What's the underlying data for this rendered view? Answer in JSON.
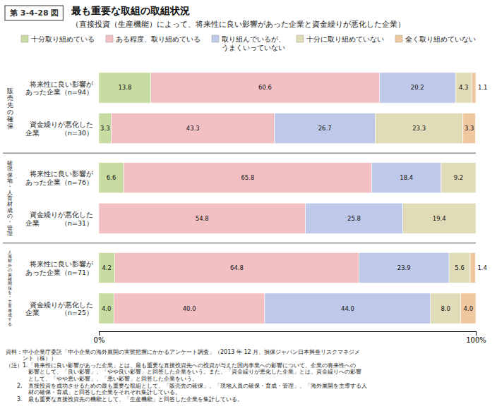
{
  "chart_data": {
    "type": "bar",
    "orientation": "horizontal",
    "stacked": true,
    "data_labels": true,
    "legend": "top",
    "grid": false,
    "title": "最も重要な取組の取組状況",
    "subtitle": "（直接投資（生産機能）によって、将来性に良い影響があった企業と資金繰りが悪化した企業）",
    "figure_label": "第 3-4-28 図",
    "categories": [
      "将来性に良い影響が\nあった企業（n=94）",
      "資金繰りが悪化した\n企業          （n=30）",
      "将来性に良い影響が\nあった企業（n=76）",
      "資金繰りが悪化した\n企業          （n=31）",
      "将来性に良い影響が\nあった企業（n=71）",
      "資金繰りが悪化した\n企業          （n=25）"
    ],
    "group_labels": [
      "販\n売\n先\nの\n確\n保",
      "確\n現\n保\n地\n・\n人\n育\n材\n成\nの\n・\n管\n理",
      "人\n海\n材\n外\nの\n展\n確\n開\n保\nを\n・\n主\n育\n導\n成\nす\nる"
    ],
    "series": [
      {
        "name": "十分取り組めている",
        "color": "#c8dba0",
        "values": [
          13.8,
          3.3,
          6.6,
          0.0,
          4.2,
          4.0
        ],
        "value_labels": [
          "13.8",
          "3.3",
          "6.6",
          null,
          "4.2",
          "4.0"
        ]
      },
      {
        "name": "ある程度、取り組めている",
        "color": "#f2c0c2",
        "values": [
          60.6,
          43.3,
          65.8,
          54.8,
          64.8,
          40.0
        ],
        "value_labels": [
          "60.6",
          "43.3",
          "65.8",
          "54.8",
          "64.8",
          "40.0"
        ]
      },
      {
        "name": "取り組んでいるが、\nうまくいっていない",
        "color": "#bec8e8",
        "values": [
          20.2,
          26.7,
          18.4,
          25.8,
          23.9,
          44.0
        ],
        "value_labels": [
          "20.2",
          "26.7",
          "18.4",
          "25.8",
          "23.9",
          "44.0"
        ]
      },
      {
        "name": "十分に取り組めていない",
        "color": "#e0dcb8",
        "values": [
          4.3,
          23.3,
          9.2,
          19.4,
          5.6,
          8.0
        ],
        "value_labels": [
          "4.3",
          "23.3",
          "9.2",
          "19.4",
          "5.6",
          "8.0"
        ]
      },
      {
        "name": "全く取り組めていない",
        "color": "#f0c8a0",
        "values": [
          1.1,
          3.3,
          0.0,
          0.0,
          1.4,
          4.0
        ],
        "value_labels": [
          "1.1",
          "3.3",
          null,
          null,
          "1.4",
          "4.0"
        ]
      }
    ],
    "xlim": [
      0,
      100
    ],
    "xticks": [
      {
        "value": 0,
        "label": "0%"
      },
      {
        "value": 100,
        "label": "100%"
      }
    ],
    "tick_labels": "x",
    "notes": [
      "資料：中小企業庁委託「中小企業の海外展開の実態把握にかかるアンケート調査」（2013 年 12 月、損保ジャパン日本興亜リスクマネジメ",
      "　　　ント（株））",
      "（注）1.「将来性に良い影響があった企業」とは、最も重要な直接投資先への投資が与えた国内事業への影響について、企業の将来性への",
      "　　　　影響として、「良い影響」、「やや良い影響」と回答した企業をいう。また、「資金繰りが悪化した企業」とは、資金繰りへの影響",
      "　　　　として、「やや悪い影響」、「悪い影響」と回答した企業をいう。",
      "　　2.　直接投資を成功させるための最も重要な取組として、「販売先の確保」、「現地人員の確保・育成・管理」、「海外展開を主導する人",
      "　　　　材の確保・育成」と回答した企業をそれぞれ集計している。",
      "　　3.　最も重要な直接投資先の機能として、「生産機能」と回答した企業を集計している。"
    ]
  }
}
